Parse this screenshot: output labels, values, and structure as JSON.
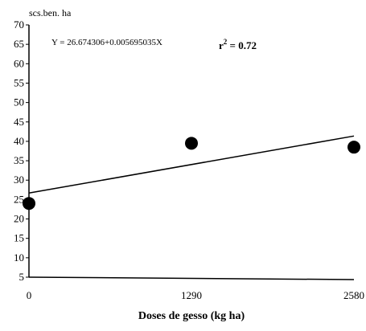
{
  "chart_data": {
    "type": "scatter",
    "title": "",
    "xlabel": "Doses de gesso (kg ha)",
    "ylabel": "scs.ben. ha",
    "x_categories": [
      "0",
      "1290",
      "2580"
    ],
    "x_values": [
      0,
      1290,
      2580
    ],
    "xlim": [
      0,
      2580
    ],
    "ylim": [
      5,
      70
    ],
    "y_ticks": [
      5,
      10,
      15,
      20,
      25,
      30,
      35,
      40,
      45,
      50,
      55,
      60,
      65,
      70
    ],
    "grid": false,
    "series": [
      {
        "points": [
          {
            "x": 0,
            "y": 24
          },
          {
            "x": 1290,
            "y": 39.5
          },
          {
            "x": 2580,
            "y": 38.5
          }
        ]
      }
    ],
    "trendline": {
      "intercept": 26.674306,
      "slope": 0.005695035
    },
    "annotations": {
      "equation": "Y = 26.674306+0.005695035X",
      "r2_prefix": "r",
      "r2_sup": "2",
      "r2_value": " = 0.72"
    }
  }
}
